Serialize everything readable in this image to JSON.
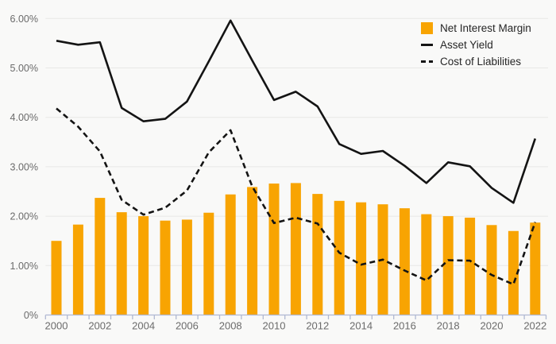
{
  "chart_data": {
    "type": "combo-bar-line",
    "title": "",
    "categories": [
      2000,
      2001,
      2002,
      2003,
      2004,
      2005,
      2006,
      2007,
      2008,
      2009,
      2010,
      2011,
      2012,
      2013,
      2014,
      2015,
      2016,
      2017,
      2018,
      2019,
      2020,
      2021,
      2022
    ],
    "series": [
      {
        "name": "Net Interest Margin",
        "type": "bar",
        "color": "#F8A402",
        "values": [
          1.5,
          1.83,
          2.37,
          2.08,
          2.0,
          1.91,
          1.93,
          2.07,
          2.44,
          2.59,
          2.66,
          2.67,
          2.45,
          2.31,
          2.28,
          2.24,
          2.16,
          2.04,
          2.0,
          1.97,
          1.82,
          1.7,
          1.87
        ]
      },
      {
        "name": "Asset Yield",
        "type": "line",
        "style": "solid",
        "color": "#141414",
        "values": [
          5.55,
          5.47,
          5.52,
          4.19,
          3.92,
          3.97,
          4.32,
          5.13,
          5.96,
          5.15,
          4.35,
          4.52,
          4.22,
          3.46,
          3.26,
          3.32,
          3.02,
          2.67,
          3.09,
          3.01,
          2.57,
          2.27,
          3.57
        ]
      },
      {
        "name": "Cost of Liabilities",
        "type": "line",
        "style": "dashed",
        "color": "#141414",
        "values": [
          4.18,
          3.81,
          3.31,
          2.33,
          2.03,
          2.17,
          2.52,
          3.29,
          3.74,
          2.6,
          1.86,
          1.97,
          1.85,
          1.26,
          1.02,
          1.12,
          0.9,
          0.7,
          1.11,
          1.1,
          0.81,
          0.62,
          1.88
        ]
      }
    ],
    "y_axis": {
      "min": 0,
      "max": 6,
      "step": 1,
      "tick_labels": [
        "0%",
        "1.00%",
        "2.00%",
        "3.00%",
        "4.00%",
        "5.00%",
        "6.00%"
      ]
    },
    "x_axis": {
      "labeled_ticks": [
        2000,
        2002,
        2004,
        2006,
        2008,
        2010,
        2012,
        2014,
        2016,
        2018,
        2020,
        2022
      ]
    },
    "legend_position": "top-right",
    "grid": true
  },
  "colors": {
    "background": "#f9f9f8",
    "gridline": "#e8e8e6",
    "axis": "#b0b9d2",
    "axis_label": "#6b6b6b",
    "bar": "#F8A402",
    "line": "#141414",
    "legend_text": "#262626"
  }
}
